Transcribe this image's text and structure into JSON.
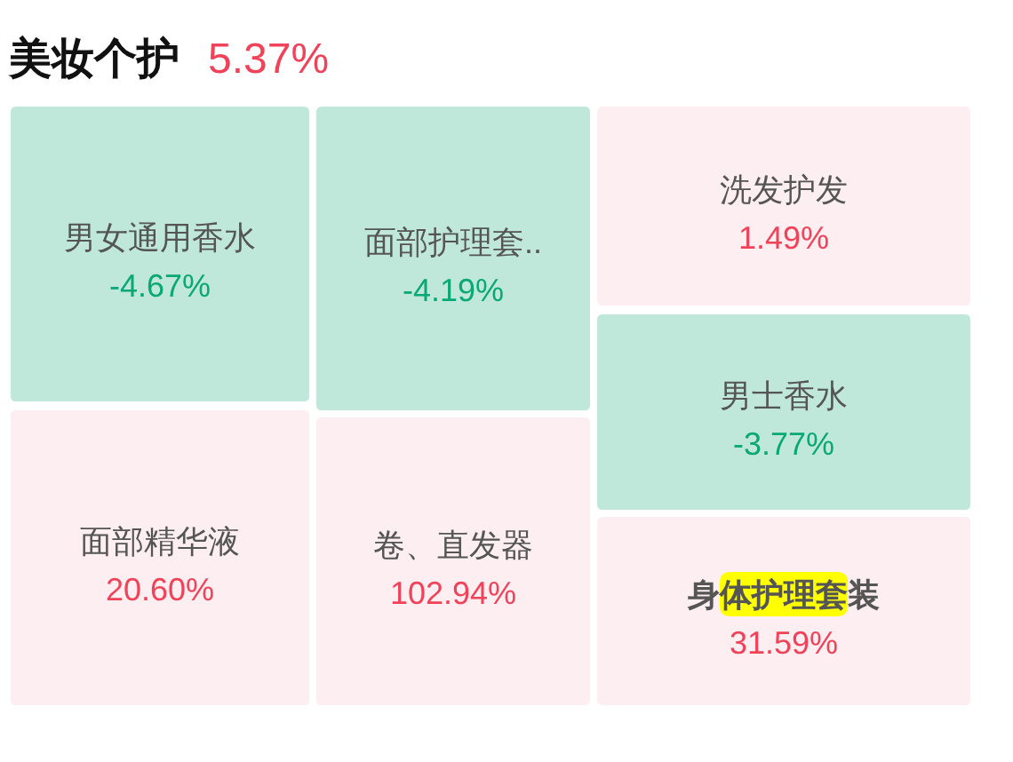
{
  "chart_data": {
    "type": "other",
    "title": "美妆个护",
    "subtitle": "5.37%",
    "categories": [
      "男女通用香水",
      "面部精华液",
      "面部护理套..",
      "卷、直发器",
      "洗发护发",
      "男士香水",
      "身体护理套装"
    ],
    "values": [
      -4.67,
      20.6,
      -4.19,
      102.94,
      1.49,
      -3.77,
      31.59
    ],
    "value_labels": [
      "-4.67%",
      "20.60%",
      "-4.19%",
      "102.94%",
      "1.49%",
      "-3.77%",
      "31.59%"
    ],
    "colors": [
      "#bfe8da",
      "#fdeef1",
      "#bfe8da",
      "#fdeef1",
      "#fdeef1",
      "#bfe8da",
      "#fdeef1"
    ]
  }
}
